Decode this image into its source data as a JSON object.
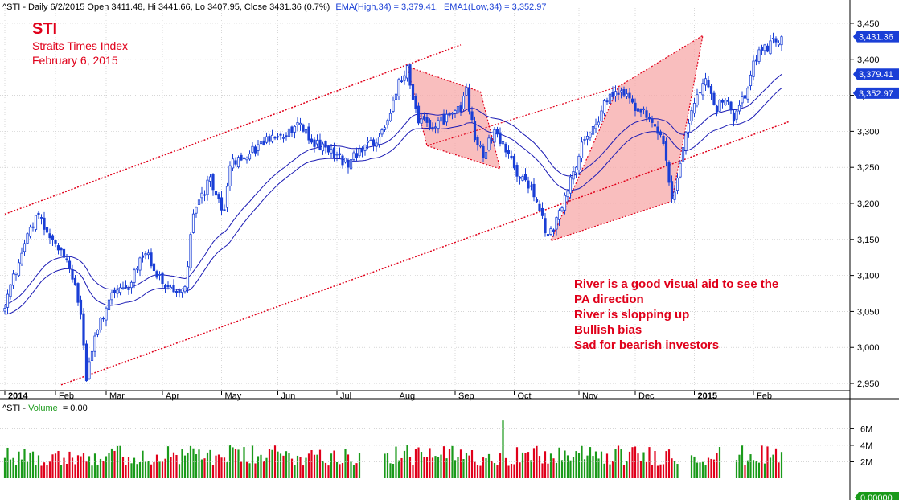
{
  "header": {
    "prefix": "^STI - Daily 6/2/2015 Open 3411.48, Hi 3441.66, Lo 3407.95, Close 3431.36 (0.7%)",
    "ema_high": "EMA(High,34) = 3,379.41,",
    "ema_low": "EMA1(Low,34) = 3,352.97"
  },
  "annotation": {
    "title": "STI",
    "subtitle": "Straits Times Index",
    "date": "February 6, 2015"
  },
  "callout_lines": [
    "River is a good visual aid to see the",
    "PA direction",
    "River is slopping up",
    "Bullish bias",
    "Sad for bearish investors"
  ],
  "price_tags": [
    {
      "label": "3,431.36",
      "value": 3431.36
    },
    {
      "label": "3,379.41",
      "value": 3379.41
    },
    {
      "label": "3,352.97",
      "value": 3352.97
    }
  ],
  "volume_header": {
    "prefix": "^STI - ",
    "name": "Volume",
    "value": "= 0.00"
  },
  "volume_tag": "0.00000",
  "colors": {
    "up": "#1a3fd6",
    "down": "#1a3fd6",
    "ema": "#1a1ab4",
    "channel": "#e0001a",
    "pattern_fill": "#f7a8a8",
    "vol_up": "#1a9a1a",
    "vol_down": "#e0001a",
    "tag_bg": "#1a3fd6",
    "grid": "#bfbfbf"
  },
  "chart_data": {
    "type": "candlestick",
    "price_axis": {
      "min": 2940,
      "max": 3460,
      "ticks": [
        2950,
        3000,
        3050,
        3100,
        3150,
        3200,
        3250,
        3300,
        3350,
        3400,
        3450
      ],
      "tick_labels": [
        "2,950",
        "3,000",
        "3,050",
        "3,100",
        "3,150",
        "3,200",
        "3,250",
        "3,300",
        "3,350",
        "3,400",
        "3,450"
      ]
    },
    "volume_axis": {
      "min": 0,
      "max": 7500000,
      "ticks": [
        2000000,
        4000000,
        6000000
      ],
      "tick_labels": [
        "2M",
        "4M",
        "6M"
      ]
    },
    "months": [
      "2014",
      "Feb",
      "Mar",
      "Apr",
      "May",
      "Jun",
      "Jul",
      "Aug",
      "Sep",
      "Oct",
      "Nov",
      "Dec",
      "2015",
      "Feb"
    ],
    "month_start_index": [
      0,
      18,
      36,
      56,
      77,
      97,
      118,
      139,
      160,
      181,
      204,
      224,
      245,
      266
    ],
    "anchors": [
      [
        0,
        3060
      ],
      [
        8,
        3160
      ],
      [
        12,
        3185
      ],
      [
        17,
        3145
      ],
      [
        22,
        3125
      ],
      [
        27,
        3050
      ],
      [
        29,
        2955
      ],
      [
        32,
        3010
      ],
      [
        37,
        3070
      ],
      [
        44,
        3085
      ],
      [
        50,
        3135
      ],
      [
        55,
        3095
      ],
      [
        60,
        3075
      ],
      [
        64,
        3085
      ],
      [
        67,
        3185
      ],
      [
        73,
        3235
      ],
      [
        78,
        3185
      ],
      [
        80,
        3255
      ],
      [
        87,
        3270
      ],
      [
        93,
        3290
      ],
      [
        99,
        3290
      ],
      [
        104,
        3310
      ],
      [
        110,
        3285
      ],
      [
        116,
        3270
      ],
      [
        122,
        3255
      ],
      [
        126,
        3275
      ],
      [
        132,
        3290
      ],
      [
        137,
        3320
      ],
      [
        140,
        3370
      ],
      [
        143,
        3385
      ],
      [
        147,
        3315
      ],
      [
        152,
        3305
      ],
      [
        157,
        3320
      ],
      [
        162,
        3330
      ],
      [
        164,
        3355
      ],
      [
        167,
        3290
      ],
      [
        170,
        3270
      ],
      [
        174,
        3300
      ],
      [
        179,
        3270
      ],
      [
        183,
        3235
      ],
      [
        188,
        3215
      ],
      [
        193,
        3150
      ],
      [
        196,
        3175
      ],
      [
        201,
        3230
      ],
      [
        205,
        3280
      ],
      [
        209,
        3300
      ],
      [
        215,
        3355
      ],
      [
        220,
        3350
      ],
      [
        224,
        3335
      ],
      [
        229,
        3320
      ],
      [
        234,
        3290
      ],
      [
        237,
        3205
      ],
      [
        239,
        3235
      ],
      [
        243,
        3315
      ],
      [
        249,
        3375
      ],
      [
        253,
        3330
      ],
      [
        256,
        3350
      ],
      [
        259,
        3315
      ],
      [
        263,
        3350
      ],
      [
        266,
        3400
      ],
      [
        272,
        3420
      ],
      [
        276,
        3431.36
      ]
    ],
    "volume_gaps": [
      [
        127,
        134
      ],
      [
        240,
        243
      ],
      [
        255,
        259
      ]
    ],
    "volume_spike": {
      "index": 177,
      "value": 7000000
    },
    "ema_high": {
      "name": "EMA(High,34)",
      "last": 3379.41
    },
    "ema_low": {
      "name": "EMA1(Low,34)",
      "last": 3352.97
    },
    "trend_channel": {
      "upper": [
        [
          0,
          3185
        ],
        [
          162,
          3420
        ]
      ],
      "lower": [
        [
          20,
          2948
        ],
        [
          279,
          3314
        ]
      ]
    },
    "patterns": [
      [
        [
          143,
          3390
        ],
        [
          169,
          3355
        ],
        [
          176,
          3248
        ],
        [
          150,
          3280
        ]
      ],
      [
        [
          218,
          3362
        ],
        [
          248,
          3433
        ],
        [
          237,
          3203
        ],
        [
          194,
          3148
        ]
      ]
    ],
    "patterns_line": [
      [
        150,
        3280
      ],
      [
        218,
        3362
      ]
    ],
    "last": {
      "open": 3411.48,
      "high": 3441.66,
      "low": 3407.95,
      "close": 3431.36
    }
  }
}
